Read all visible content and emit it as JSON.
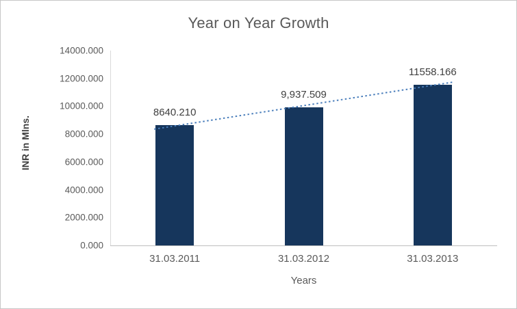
{
  "chart_data": {
    "type": "bar",
    "title": "Year on Year Growth",
    "xlabel": "Years",
    "ylabel": "INR in Mlns.",
    "categories": [
      "31.03.2011",
      "31.03.2012",
      "31.03.2013"
    ],
    "values": [
      8640.21,
      9937.509,
      11558.166
    ],
    "data_labels": [
      "8640.210",
      "9,937.509",
      "11558.166"
    ],
    "ylim": [
      0,
      14000
    ],
    "ytick_step": 2000,
    "ytick_labels": [
      "0.000",
      "2000.000",
      "4000.000",
      "6000.000",
      "8000.000",
      "10000.000",
      "12000.000",
      "14000.000"
    ],
    "grid": false,
    "legend": false,
    "bar_color": "#16365C",
    "trendline": {
      "type": "linear",
      "style": "dotted",
      "color": "#4A7EBB"
    }
  }
}
